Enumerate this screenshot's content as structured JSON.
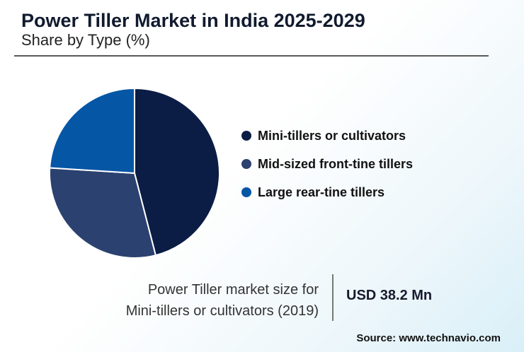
{
  "header": {
    "title": "Power Tiller Market in India 2025-2029",
    "subtitle": "Share by Type (%)"
  },
  "chart_data": {
    "type": "pie",
    "categories": [
      "Mini-tillers or cultivators",
      "Mid-sized front-tine tillers",
      "Large rear-tine tillers"
    ],
    "values": [
      46,
      30,
      24
    ],
    "colors": [
      "#0b1d45",
      "#2b416f",
      "#0556a5"
    ],
    "legend_position": "right"
  },
  "info": {
    "label_line1": "Power Tiller market size for",
    "label_line2": "Mini-tillers or cultivators (2019)",
    "value": "USD 38.2 Mn"
  },
  "footer": {
    "source": "Source: www.technavio.com"
  }
}
